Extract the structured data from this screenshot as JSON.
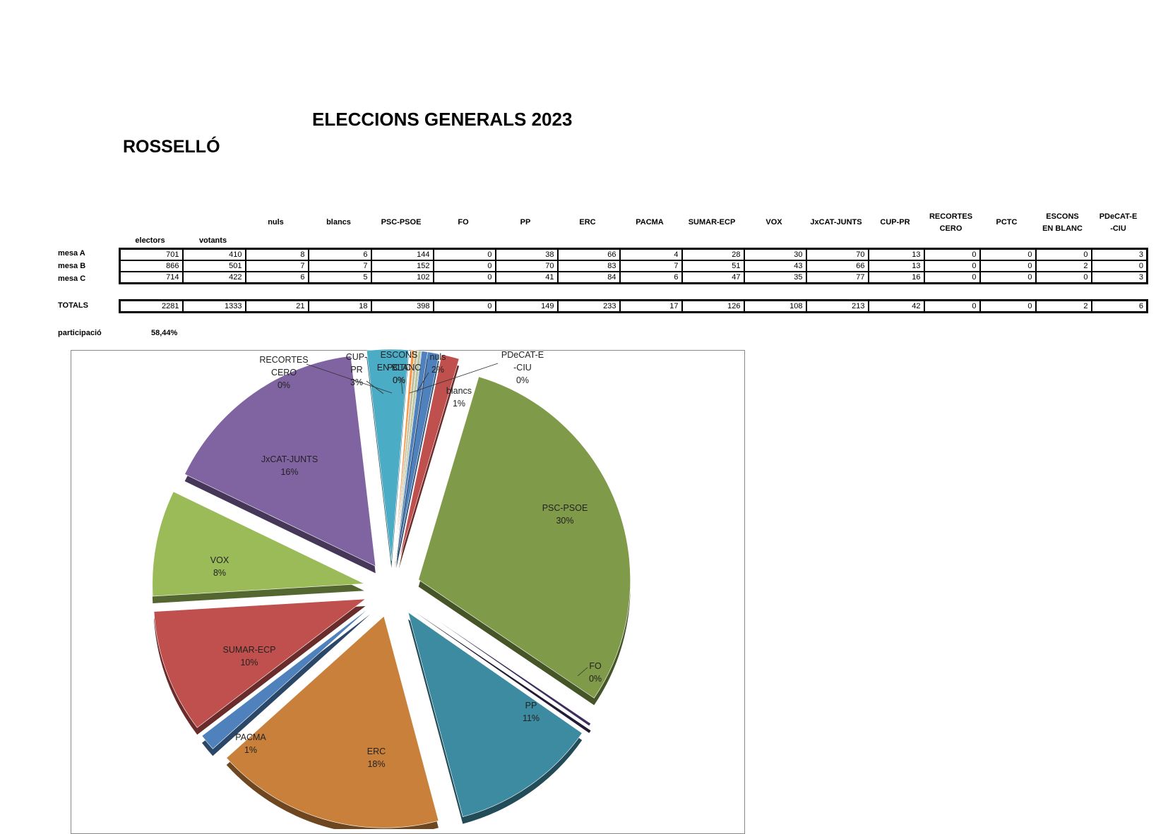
{
  "title": "ELECCIONS GENERALS 2023",
  "place": "ROSSELLÓ",
  "table": {
    "col_electors": "electors",
    "col_votants": "votants",
    "party_headers": [
      [
        "nuls"
      ],
      [
        "blancs"
      ],
      [
        "PSC-PSOE"
      ],
      [
        "FO"
      ],
      [
        "PP"
      ],
      [
        "ERC"
      ],
      [
        "PACMA"
      ],
      [
        "SUMAR-ECP"
      ],
      [
        "VOX"
      ],
      [
        "JxCAT-JUNTS"
      ],
      [
        "CUP-PR"
      ],
      [
        "RECORTES",
        "CERO"
      ],
      [
        "PCTC"
      ],
      [
        "ESCONS",
        "EN BLANC"
      ],
      [
        "PDeCAT-E",
        "-CIU"
      ]
    ],
    "rows": [
      {
        "label": "mesa A",
        "values": [
          "701",
          "410",
          "8",
          "6",
          "144",
          "0",
          "38",
          "66",
          "4",
          "28",
          "30",
          "70",
          "13",
          "0",
          "0",
          "0",
          "3"
        ]
      },
      {
        "label": "mesa B",
        "values": [
          "866",
          "501",
          "7",
          "7",
          "152",
          "0",
          "70",
          "83",
          "7",
          "51",
          "43",
          "66",
          "13",
          "0",
          "0",
          "2",
          "0"
        ]
      },
      {
        "label": "mesa C",
        "values": [
          "714",
          "422",
          "6",
          "5",
          "102",
          "0",
          "41",
          "84",
          "6",
          "47",
          "35",
          "77",
          "16",
          "0",
          "0",
          "0",
          "3"
        ]
      }
    ],
    "totals": {
      "label": "TOTALS",
      "values": [
        "2281",
        "1333",
        "21",
        "18",
        "398",
        "0",
        "149",
        "233",
        "17",
        "126",
        "108",
        "213",
        "42",
        "0",
        "0",
        "2",
        "6"
      ]
    }
  },
  "participation": {
    "label": "participació",
    "value": "58,44%"
  },
  "chart_data": {
    "type": "pie",
    "title": "",
    "slices": [
      {
        "name": "nuls",
        "value": 21,
        "pct": "2%",
        "color": "#4F81BD"
      },
      {
        "name": "blancs",
        "value": 18,
        "pct": "1%",
        "color": "#C0504D"
      },
      {
        "name": "PSC-PSOE",
        "value": 398,
        "pct": "30%",
        "color": "#7F9A48"
      },
      {
        "name": "FO",
        "value": 0,
        "pct": "0%",
        "color": "#3F2F5E"
      },
      {
        "name": "PP",
        "value": 149,
        "pct": "11%",
        "color": "#3C8BA0"
      },
      {
        "name": "ERC",
        "value": 233,
        "pct": "18%",
        "color": "#C8803A"
      },
      {
        "name": "PACMA",
        "value": 17,
        "pct": "1%",
        "color": "#4F81BD"
      },
      {
        "name": "SUMAR-ECP",
        "value": 126,
        "pct": "10%",
        "color": "#C0504D"
      },
      {
        "name": "VOX",
        "value": 108,
        "pct": "8%",
        "color": "#9BBB59"
      },
      {
        "name": "JxCAT-JUNTS",
        "value": 213,
        "pct": "16%",
        "color": "#8064A2"
      },
      {
        "name": "CUP-PR",
        "value": 42,
        "pct": "3%",
        "color": "#4BACC6"
      },
      {
        "name": "RECORTES CERO",
        "value": 0,
        "pct": "0%",
        "color": "#F79646"
      },
      {
        "name": "PCTC",
        "value": 0,
        "pct": "0%",
        "color": "#C4BD97"
      },
      {
        "name": "ESCONS EN BLANC",
        "value": 2,
        "pct": "0%",
        "color": "#B7C5A0"
      },
      {
        "name": "PDeCAT-E-CIU",
        "value": 6,
        "pct": "0%",
        "color": "#4F81BD"
      }
    ],
    "labels": [
      {
        "lines": [
          "nuls",
          "2%"
        ]
      },
      {
        "lines": [
          "blancs",
          "1%"
        ]
      },
      {
        "lines": [
          "PSC-PSOE",
          "30%"
        ]
      },
      {
        "lines": [
          "FO",
          "0%"
        ]
      },
      {
        "lines": [
          "PP",
          "11%"
        ]
      },
      {
        "lines": [
          "ERC",
          "18%"
        ]
      },
      {
        "lines": [
          "PACMA",
          "1%"
        ]
      },
      {
        "lines": [
          "SUMAR-ECP",
          "10%"
        ]
      },
      {
        "lines": [
          "VOX",
          "8%"
        ]
      },
      {
        "lines": [
          "JxCAT-JUNTS",
          "16%"
        ]
      },
      {
        "lines": [
          "CUP-",
          "PR",
          "3%"
        ]
      },
      {
        "lines": [
          "RECORTES",
          "CERO",
          "0%"
        ]
      },
      {
        "lines": [
          "PCTC",
          "0%"
        ]
      },
      {
        "lines": [
          "ESCONS",
          "EN BLANC",
          "0%"
        ]
      },
      {
        "lines": [
          "PDeCAT-E",
          "-CIU",
          "0%"
        ]
      }
    ]
  }
}
